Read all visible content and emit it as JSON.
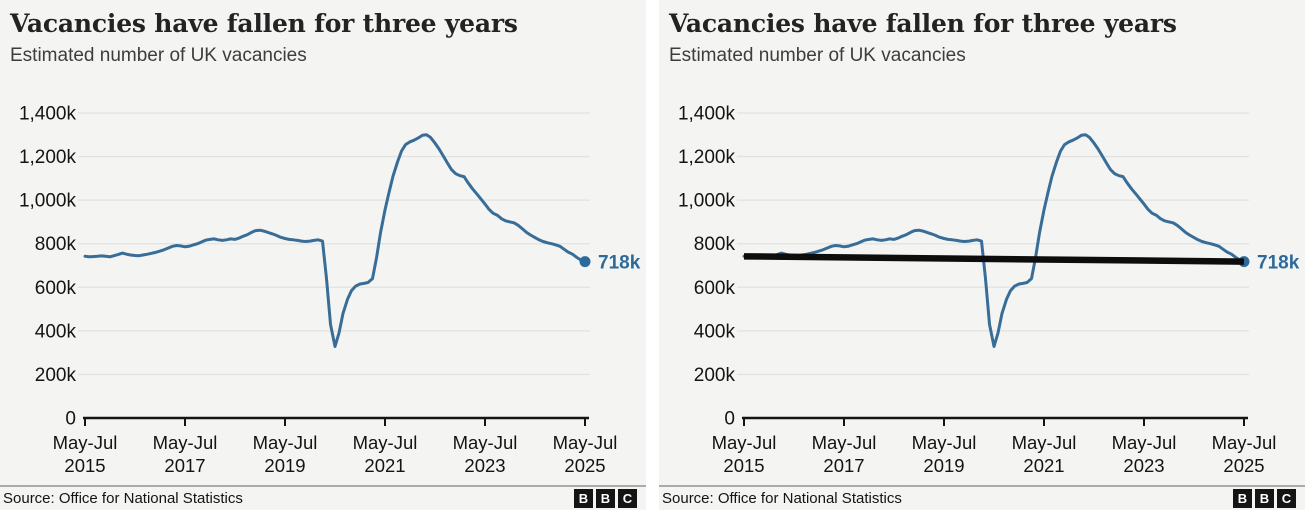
{
  "footer": {
    "source": "Source: Office for National Statistics",
    "logo": [
      "B",
      "B",
      "C"
    ]
  },
  "colors": {
    "panel_bg": "#f4f4f2",
    "line_blue": "#386d97",
    "accent_blue": "#2d6a9c",
    "overlay_black": "#0d0d0d",
    "gridline": "#e2e2e0",
    "axis": "#141414"
  },
  "chart_data": [
    {
      "type": "line",
      "title": "Vacancies have fallen for three years",
      "subtitle": "Estimated number of UK vacancies",
      "ylabel": "",
      "xlabel": "",
      "grid": true,
      "line_color": "#386d97",
      "accent_color": "#2d6a9c",
      "end_label": "718k",
      "end_value": 718,
      "xlim": [
        2015.42,
        2025.42
      ],
      "ylim": [
        0,
        1400
      ],
      "yticks": [
        {
          "v": 0,
          "label": "0"
        },
        {
          "v": 200,
          "label": "200k"
        },
        {
          "v": 400,
          "label": "400k"
        },
        {
          "v": 600,
          "label": "600k"
        },
        {
          "v": 800,
          "label": "800k"
        },
        {
          "v": 1000,
          "label": "1,000k"
        },
        {
          "v": 1200,
          "label": "1,200k"
        },
        {
          "v": 1400,
          "label": "1,400k"
        }
      ],
      "xticks": [
        {
          "t": 2015.42,
          "line1": "May-Jul",
          "line2": "2015"
        },
        {
          "t": 2017.42,
          "line1": "May-Jul",
          "line2": "2017"
        },
        {
          "t": 2019.42,
          "line1": "May-Jul",
          "line2": "2019"
        },
        {
          "t": 2021.42,
          "line1": "May-Jul",
          "line2": "2021"
        },
        {
          "t": 2023.42,
          "line1": "May-Jul",
          "line2": "2023"
        },
        {
          "t": 2025.42,
          "line1": "May-Jul",
          "line2": "2025"
        }
      ],
      "points": [
        [
          2015.42,
          742
        ],
        [
          2015.5,
          740
        ],
        [
          2015.58,
          741
        ],
        [
          2015.67,
          742
        ],
        [
          2015.75,
          744
        ],
        [
          2015.83,
          742
        ],
        [
          2015.92,
          740
        ],
        [
          2016.0,
          745
        ],
        [
          2016.08,
          750
        ],
        [
          2016.17,
          757
        ],
        [
          2016.25,
          752
        ],
        [
          2016.33,
          748
        ],
        [
          2016.42,
          746
        ],
        [
          2016.5,
          745
        ],
        [
          2016.58,
          748
        ],
        [
          2016.67,
          752
        ],
        [
          2016.75,
          756
        ],
        [
          2016.83,
          760
        ],
        [
          2016.92,
          766
        ],
        [
          2017.0,
          772
        ],
        [
          2017.08,
          780
        ],
        [
          2017.17,
          788
        ],
        [
          2017.25,
          792
        ],
        [
          2017.33,
          790
        ],
        [
          2017.42,
          786
        ],
        [
          2017.5,
          788
        ],
        [
          2017.58,
          794
        ],
        [
          2017.67,
          800
        ],
        [
          2017.75,
          808
        ],
        [
          2017.83,
          816
        ],
        [
          2017.92,
          820
        ],
        [
          2018.0,
          822
        ],
        [
          2018.08,
          818
        ],
        [
          2018.17,
          815
        ],
        [
          2018.25,
          818
        ],
        [
          2018.33,
          822
        ],
        [
          2018.42,
          820
        ],
        [
          2018.5,
          826
        ],
        [
          2018.58,
          834
        ],
        [
          2018.67,
          842
        ],
        [
          2018.75,
          852
        ],
        [
          2018.83,
          860
        ],
        [
          2018.92,
          862
        ],
        [
          2019.0,
          858
        ],
        [
          2019.08,
          852
        ],
        [
          2019.17,
          845
        ],
        [
          2019.25,
          838
        ],
        [
          2019.33,
          830
        ],
        [
          2019.42,
          824
        ],
        [
          2019.5,
          820
        ],
        [
          2019.58,
          818
        ],
        [
          2019.67,
          815
        ],
        [
          2019.75,
          812
        ],
        [
          2019.83,
          810
        ],
        [
          2019.92,
          812
        ],
        [
          2020.0,
          815
        ],
        [
          2020.08,
          818
        ],
        [
          2020.17,
          812
        ],
        [
          2020.25,
          640
        ],
        [
          2020.33,
          430
        ],
        [
          2020.42,
          328
        ],
        [
          2020.5,
          390
        ],
        [
          2020.58,
          480
        ],
        [
          2020.67,
          545
        ],
        [
          2020.75,
          585
        ],
        [
          2020.83,
          605
        ],
        [
          2020.92,
          615
        ],
        [
          2021.0,
          618
        ],
        [
          2021.08,
          622
        ],
        [
          2021.17,
          640
        ],
        [
          2021.25,
          735
        ],
        [
          2021.33,
          850
        ],
        [
          2021.42,
          955
        ],
        [
          2021.5,
          1035
        ],
        [
          2021.58,
          1110
        ],
        [
          2021.67,
          1175
        ],
        [
          2021.75,
          1225
        ],
        [
          2021.83,
          1255
        ],
        [
          2021.92,
          1268
        ],
        [
          2022.0,
          1275
        ],
        [
          2022.08,
          1285
        ],
        [
          2022.17,
          1298
        ],
        [
          2022.25,
          1300
        ],
        [
          2022.33,
          1288
        ],
        [
          2022.42,
          1262
        ],
        [
          2022.5,
          1235
        ],
        [
          2022.58,
          1205
        ],
        [
          2022.67,
          1170
        ],
        [
          2022.75,
          1140
        ],
        [
          2022.83,
          1122
        ],
        [
          2022.92,
          1112
        ],
        [
          2023.0,
          1108
        ],
        [
          2023.08,
          1080
        ],
        [
          2023.17,
          1052
        ],
        [
          2023.25,
          1030
        ],
        [
          2023.33,
          1008
        ],
        [
          2023.42,
          982
        ],
        [
          2023.5,
          958
        ],
        [
          2023.58,
          940
        ],
        [
          2023.67,
          930
        ],
        [
          2023.75,
          915
        ],
        [
          2023.83,
          905
        ],
        [
          2023.92,
          900
        ],
        [
          2024.0,
          896
        ],
        [
          2024.08,
          885
        ],
        [
          2024.17,
          868
        ],
        [
          2024.25,
          852
        ],
        [
          2024.33,
          840
        ],
        [
          2024.42,
          828
        ],
        [
          2024.5,
          818
        ],
        [
          2024.58,
          810
        ],
        [
          2024.67,
          804
        ],
        [
          2024.75,
          800
        ],
        [
          2024.83,
          795
        ],
        [
          2024.92,
          788
        ],
        [
          2025.0,
          775
        ],
        [
          2025.08,
          762
        ],
        [
          2025.17,
          752
        ],
        [
          2025.25,
          738
        ],
        [
          2025.33,
          726
        ],
        [
          2025.42,
          718
        ]
      ]
    },
    {
      "type": "line",
      "title": "Vacancies have fallen for three years",
      "subtitle": "Estimated number of UK vacancies",
      "ylabel": "",
      "xlabel": "",
      "grid": true,
      "line_color": "#386d97",
      "accent_color": "#2d6a9c",
      "end_label": "718k",
      "end_value": 718,
      "xlim": [
        2015.42,
        2025.42
      ],
      "ylim": [
        0,
        1400
      ],
      "yticks": [
        {
          "v": 0,
          "label": "0"
        },
        {
          "v": 200,
          "label": "200k"
        },
        {
          "v": 400,
          "label": "400k"
        },
        {
          "v": 600,
          "label": "600k"
        },
        {
          "v": 800,
          "label": "800k"
        },
        {
          "v": 1000,
          "label": "1,000k"
        },
        {
          "v": 1200,
          "label": "1,200k"
        },
        {
          "v": 1400,
          "label": "1,400k"
        }
      ],
      "xticks": [
        {
          "t": 2015.42,
          "line1": "May-Jul",
          "line2": "2015"
        },
        {
          "t": 2017.42,
          "line1": "May-Jul",
          "line2": "2017"
        },
        {
          "t": 2019.42,
          "line1": "May-Jul",
          "line2": "2019"
        },
        {
          "t": 2021.42,
          "line1": "May-Jul",
          "line2": "2021"
        },
        {
          "t": 2023.42,
          "line1": "May-Jul",
          "line2": "2023"
        },
        {
          "t": 2025.42,
          "line1": "May-Jul",
          "line2": "2025"
        }
      ],
      "overlay_trend_line": {
        "x1": 2015.42,
        "y1": 742,
        "x2": 2025.42,
        "y2": 718,
        "color": "#0d0d0d",
        "stroke_width": 6.5
      },
      "points": [
        [
          2015.42,
          742
        ],
        [
          2015.5,
          740
        ],
        [
          2015.58,
          741
        ],
        [
          2015.67,
          742
        ],
        [
          2015.75,
          744
        ],
        [
          2015.83,
          742
        ],
        [
          2015.92,
          740
        ],
        [
          2016.0,
          745
        ],
        [
          2016.08,
          750
        ],
        [
          2016.17,
          757
        ],
        [
          2016.25,
          752
        ],
        [
          2016.33,
          748
        ],
        [
          2016.42,
          746
        ],
        [
          2016.5,
          745
        ],
        [
          2016.58,
          748
        ],
        [
          2016.67,
          752
        ],
        [
          2016.75,
          756
        ],
        [
          2016.83,
          760
        ],
        [
          2016.92,
          766
        ],
        [
          2017.0,
          772
        ],
        [
          2017.08,
          780
        ],
        [
          2017.17,
          788
        ],
        [
          2017.25,
          792
        ],
        [
          2017.33,
          790
        ],
        [
          2017.42,
          786
        ],
        [
          2017.5,
          788
        ],
        [
          2017.58,
          794
        ],
        [
          2017.67,
          800
        ],
        [
          2017.75,
          808
        ],
        [
          2017.83,
          816
        ],
        [
          2017.92,
          820
        ],
        [
          2018.0,
          822
        ],
        [
          2018.08,
          818
        ],
        [
          2018.17,
          815
        ],
        [
          2018.25,
          818
        ],
        [
          2018.33,
          822
        ],
        [
          2018.42,
          820
        ],
        [
          2018.5,
          826
        ],
        [
          2018.58,
          834
        ],
        [
          2018.67,
          842
        ],
        [
          2018.75,
          852
        ],
        [
          2018.83,
          860
        ],
        [
          2018.92,
          862
        ],
        [
          2019.0,
          858
        ],
        [
          2019.08,
          852
        ],
        [
          2019.17,
          845
        ],
        [
          2019.25,
          838
        ],
        [
          2019.33,
          830
        ],
        [
          2019.42,
          824
        ],
        [
          2019.5,
          820
        ],
        [
          2019.58,
          818
        ],
        [
          2019.67,
          815
        ],
        [
          2019.75,
          812
        ],
        [
          2019.83,
          810
        ],
        [
          2019.92,
          812
        ],
        [
          2020.0,
          815
        ],
        [
          2020.08,
          818
        ],
        [
          2020.17,
          812
        ],
        [
          2020.25,
          640
        ],
        [
          2020.33,
          430
        ],
        [
          2020.42,
          328
        ],
        [
          2020.5,
          390
        ],
        [
          2020.58,
          480
        ],
        [
          2020.67,
          545
        ],
        [
          2020.75,
          585
        ],
        [
          2020.83,
          605
        ],
        [
          2020.92,
          615
        ],
        [
          2021.0,
          618
        ],
        [
          2021.08,
          622
        ],
        [
          2021.17,
          640
        ],
        [
          2021.25,
          735
        ],
        [
          2021.33,
          850
        ],
        [
          2021.42,
          955
        ],
        [
          2021.5,
          1035
        ],
        [
          2021.58,
          1110
        ],
        [
          2021.67,
          1175
        ],
        [
          2021.75,
          1225
        ],
        [
          2021.83,
          1255
        ],
        [
          2021.92,
          1268
        ],
        [
          2022.0,
          1275
        ],
        [
          2022.08,
          1285
        ],
        [
          2022.17,
          1298
        ],
        [
          2022.25,
          1300
        ],
        [
          2022.33,
          1288
        ],
        [
          2022.42,
          1262
        ],
        [
          2022.5,
          1235
        ],
        [
          2022.58,
          1205
        ],
        [
          2022.67,
          1170
        ],
        [
          2022.75,
          1140
        ],
        [
          2022.83,
          1122
        ],
        [
          2022.92,
          1112
        ],
        [
          2023.0,
          1108
        ],
        [
          2023.08,
          1080
        ],
        [
          2023.17,
          1052
        ],
        [
          2023.25,
          1030
        ],
        [
          2023.33,
          1008
        ],
        [
          2023.42,
          982
        ],
        [
          2023.5,
          958
        ],
        [
          2023.58,
          940
        ],
        [
          2023.67,
          930
        ],
        [
          2023.75,
          915
        ],
        [
          2023.83,
          905
        ],
        [
          2023.92,
          900
        ],
        [
          2024.0,
          896
        ],
        [
          2024.08,
          885
        ],
        [
          2024.17,
          868
        ],
        [
          2024.25,
          852
        ],
        [
          2024.33,
          840
        ],
        [
          2024.42,
          828
        ],
        [
          2024.5,
          818
        ],
        [
          2024.58,
          810
        ],
        [
          2024.67,
          804
        ],
        [
          2024.75,
          800
        ],
        [
          2024.83,
          795
        ],
        [
          2024.92,
          788
        ],
        [
          2025.0,
          775
        ],
        [
          2025.08,
          762
        ],
        [
          2025.17,
          752
        ],
        [
          2025.25,
          738
        ],
        [
          2025.33,
          726
        ],
        [
          2025.42,
          718
        ]
      ]
    }
  ]
}
